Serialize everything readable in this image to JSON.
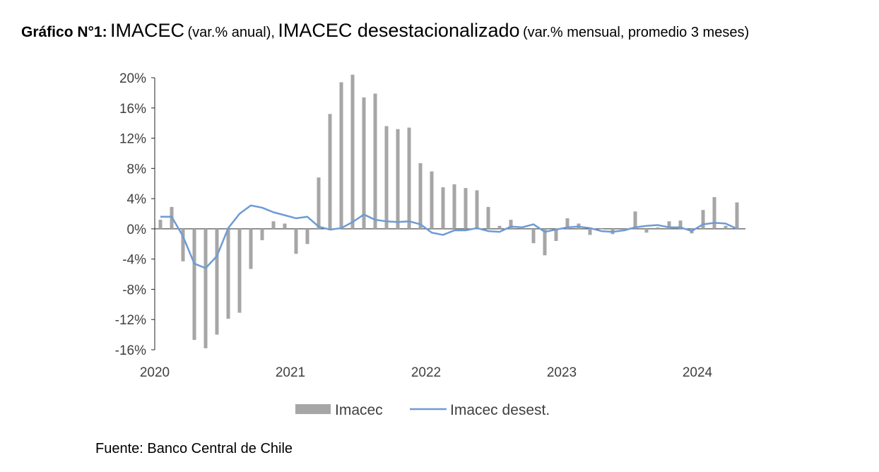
{
  "title": {
    "prefix": "Gráfico N°1:",
    "part1": "IMACEC",
    "part1_unit": "(var.% anual),",
    "part2": "IMACEC desestacionalizado",
    "part2_unit": "(var.% mensual, promedio 3 meses)"
  },
  "source": "Fuente: Banco Central de Chile",
  "chart_data": {
    "type": "bar",
    "ylim": [
      -16,
      20
    ],
    "yticks": [
      20,
      16,
      12,
      8,
      4,
      0,
      -4,
      -8,
      -12,
      -16
    ],
    "ytick_labels": [
      "20%",
      "16%",
      "12%",
      "8%",
      "4%",
      "0%",
      "-4%",
      "-8%",
      "-12%",
      "-16%"
    ],
    "xtick_labels": [
      "2020",
      "2021",
      "2022",
      "2023",
      "2024"
    ],
    "grid": false,
    "legend": {
      "placement": "bottom"
    },
    "categories": [
      "2020-01",
      "2020-02",
      "2020-03",
      "2020-04",
      "2020-05",
      "2020-06",
      "2020-07",
      "2020-08",
      "2020-09",
      "2020-10",
      "2020-11",
      "2020-12",
      "2021-01",
      "2021-02",
      "2021-03",
      "2021-04",
      "2021-05",
      "2021-06",
      "2021-07",
      "2021-08",
      "2021-09",
      "2021-10",
      "2021-11",
      "2021-12",
      "2022-01",
      "2022-02",
      "2022-03",
      "2022-04",
      "2022-05",
      "2022-06",
      "2022-07",
      "2022-08",
      "2022-09",
      "2022-10",
      "2022-11",
      "2022-12",
      "2023-01",
      "2023-02",
      "2023-03",
      "2023-04",
      "2023-05",
      "2023-06",
      "2023-07",
      "2023-08",
      "2023-09",
      "2023-10",
      "2023-11",
      "2023-12",
      "2024-01",
      "2024-02",
      "2024-03",
      "2024-04"
    ],
    "series": [
      {
        "name": "Imacec",
        "kind": "bar",
        "color": "#a6a6a6",
        "values": [
          1.2,
          2.9,
          -4.3,
          -14.7,
          -15.8,
          -14.0,
          -11.9,
          -11.1,
          -5.3,
          -1.5,
          1.0,
          0.7,
          -3.3,
          -2.0,
          6.8,
          15.2,
          19.4,
          20.4,
          17.4,
          17.9,
          13.6,
          13.2,
          13.4,
          8.7,
          7.6,
          5.5,
          5.9,
          5.4,
          5.1,
          2.9,
          0.4,
          1.2,
          0.2,
          -1.9,
          -3.5,
          -1.6,
          1.4,
          0.7,
          -0.8,
          0.0,
          -0.7,
          -0.3,
          2.3,
          -0.5,
          0.2,
          1.0,
          1.1,
          -0.6,
          2.5,
          4.2,
          0.4,
          3.5
        ]
      },
      {
        "name": "Imacec desest.",
        "kind": "line",
        "color": "#6e9bd4",
        "values": [
          1.6,
          1.6,
          -1.0,
          -4.6,
          -5.2,
          -3.6,
          0.1,
          2.0,
          3.1,
          2.8,
          2.2,
          1.8,
          1.4,
          1.6,
          0.3,
          -0.1,
          0.1,
          0.9,
          1.9,
          1.2,
          1.0,
          0.9,
          1.0,
          0.6,
          -0.5,
          -0.8,
          -0.2,
          -0.2,
          0.1,
          -0.3,
          -0.4,
          0.3,
          0.2,
          0.6,
          -0.4,
          -0.1,
          0.2,
          0.3,
          0.1,
          -0.3,
          -0.4,
          -0.2,
          0.2,
          0.4,
          0.5,
          0.2,
          0.2,
          -0.3,
          0.6,
          0.8,
          0.7,
          0.0
        ]
      }
    ]
  }
}
